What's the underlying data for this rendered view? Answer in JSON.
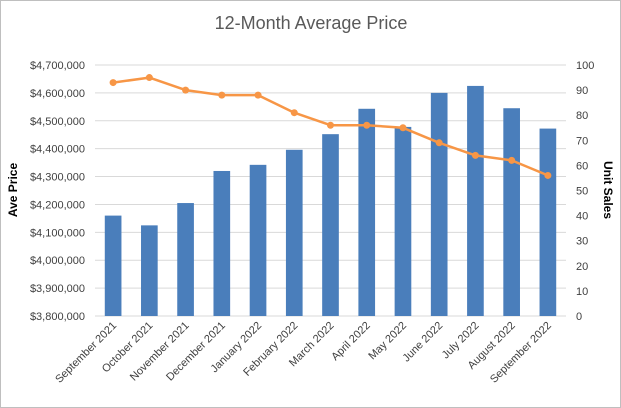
{
  "chart_data": {
    "type": "bar",
    "title": "12-Month Average Price",
    "categories": [
      "September 2021",
      "October 2021",
      "November 2021",
      "December 2021",
      "January 2022",
      "February 2022",
      "March 2022",
      "April 2022",
      "May 2022",
      "June 2022",
      "July 2022",
      "August 2022",
      "September 2022"
    ],
    "ylabel": "Ave Price",
    "y2label": "Unit Sales",
    "ylim": [
      3800000,
      4700000
    ],
    "y2lim": [
      0,
      100
    ],
    "yticks": [
      "$3,800,000",
      "$3,900,000",
      "$4,000,000",
      "$4,100,000",
      "$4,200,000",
      "$4,300,000",
      "$4,400,000",
      "$4,500,000",
      "$4,600,000",
      "$4,700,000"
    ],
    "y2ticks": [
      "0",
      "10",
      "20",
      "30",
      "40",
      "50",
      "60",
      "70",
      "80",
      "90",
      "100"
    ],
    "grid": true,
    "series": [
      {
        "type": "bar",
        "axis": "left",
        "color": "#4a7ebb",
        "values": [
          4160000,
          4125000,
          4205000,
          4320000,
          4342000,
          4396000,
          4452000,
          4543000,
          4478000,
          4600000,
          4625000,
          4545000,
          4472000
        ]
      },
      {
        "type": "line",
        "axis": "right",
        "color": "#f79646",
        "values": [
          93,
          95,
          90,
          88,
          88,
          81,
          76,
          76,
          75,
          69,
          64,
          62,
          56
        ]
      }
    ]
  }
}
